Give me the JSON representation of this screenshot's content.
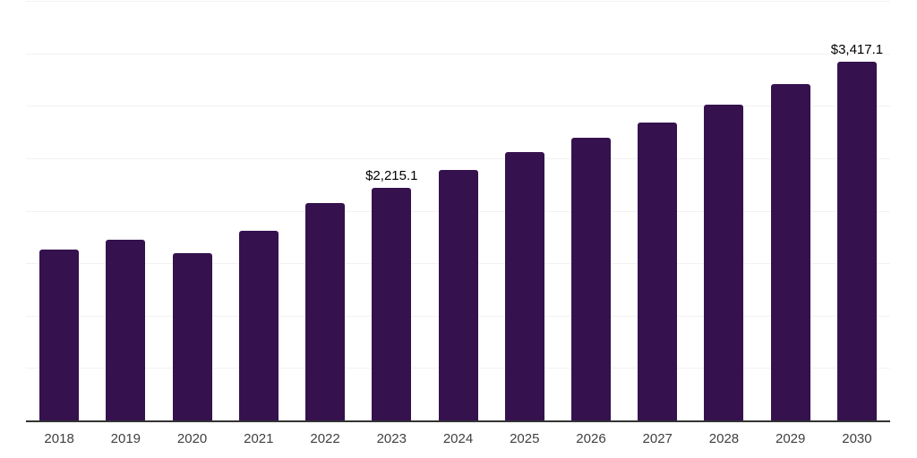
{
  "chart_data": {
    "type": "bar",
    "title": "",
    "xlabel": "",
    "ylabel": "",
    "categories": [
      "2018",
      "2019",
      "2020",
      "2021",
      "2022",
      "2023",
      "2024",
      "2025",
      "2026",
      "2027",
      "2028",
      "2029",
      "2030"
    ],
    "values": [
      1633,
      1724,
      1596,
      1812,
      2070,
      2215.1,
      2385,
      2562,
      2692,
      2840,
      3014,
      3209,
      3417.1
    ],
    "value_labels": [
      {
        "index": 5,
        "text": "$2,215.1"
      },
      {
        "index": 12,
        "text": "$3,417.1"
      }
    ],
    "ylim": [
      0,
      4000
    ],
    "grid_step": 500,
    "grid": true,
    "legend": false,
    "colors": {
      "bar": "#35114E",
      "gridline": "#f2f2f2",
      "axis_line": "#333333",
      "value_label": "#000000",
      "tick_label": "#404040",
      "background": "#ffffff"
    }
  }
}
